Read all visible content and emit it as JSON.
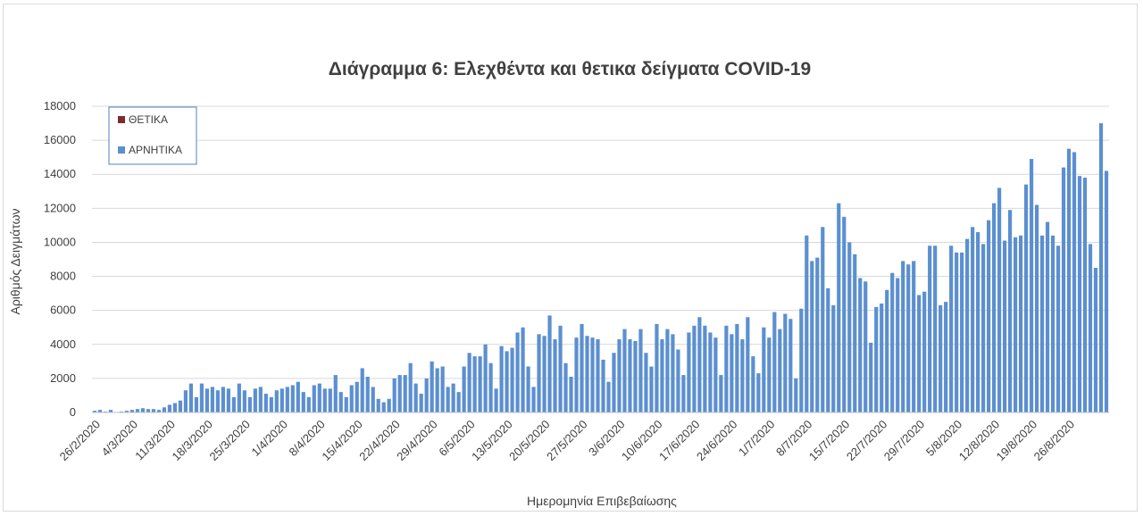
{
  "chart_data": {
    "type": "bar",
    "stacked": true,
    "title": "Διάγραμμα 6: Ελεχθέντα και θετικα δείγματα COVID-19",
    "xlabel": "Ημερομηνία Επιβεβαίωσης",
    "ylabel": "Αριθμός Δειγμάτων",
    "ylim": [
      0,
      18000
    ],
    "yticks": [
      0,
      2000,
      4000,
      6000,
      8000,
      10000,
      12000,
      14000,
      16000,
      18000
    ],
    "grid": true,
    "legend_position": "top-left",
    "x_start": "2020-02-26",
    "xtick_labels": [
      "26/2/2020",
      "4/3/2020",
      "11/3/2020",
      "18/3/2020",
      "25/3/2020",
      "1/4/2020",
      "8/4/2020",
      "15/4/2020",
      "22/4/2020",
      "29/4/2020",
      "6/5/2020",
      "13/5/2020",
      "20/5/2020",
      "27/5/2020",
      "3/6/2020",
      "10/6/2020",
      "17/6/2020",
      "24/6/2020",
      "1/7/2020",
      "8/7/2020",
      "15/7/2020",
      "22/7/2020",
      "29/7/2020",
      "5/8/2020",
      "12/8/2020",
      "19/8/2020",
      "26/8/2020"
    ],
    "series": [
      {
        "name": "ΘΕΤΙΚΑ",
        "color": "#7b2c2c",
        "values": [
          0,
          0,
          0,
          0,
          0,
          0,
          0,
          0,
          0,
          0,
          0,
          0,
          0,
          0,
          0,
          0,
          0,
          0,
          0,
          0,
          0,
          0,
          0,
          0,
          0,
          0,
          0,
          0,
          0,
          0,
          0,
          0,
          0,
          0,
          0,
          0,
          0,
          0,
          0,
          0,
          0,
          0,
          0,
          0,
          0,
          0,
          0,
          0,
          0,
          0,
          0,
          0,
          0,
          0,
          0,
          0,
          0,
          0,
          0,
          0,
          0,
          0,
          0,
          0,
          0,
          0,
          0,
          0,
          0,
          0,
          0,
          0,
          0,
          0,
          0,
          0,
          0,
          0,
          0,
          0,
          0,
          0,
          0,
          0,
          0,
          0,
          0,
          0,
          0,
          0,
          0,
          0,
          0,
          0,
          0,
          0,
          0,
          0,
          0,
          0,
          0,
          0,
          0,
          0,
          0,
          0,
          0,
          0,
          0,
          0,
          0,
          0,
          0,
          0,
          0,
          0,
          0,
          0,
          0,
          0,
          0,
          0,
          0,
          0,
          0,
          0,
          0,
          0,
          0,
          0,
          0,
          0,
          0,
          0,
          0,
          0,
          0,
          0,
          0,
          0,
          0,
          0,
          0,
          0,
          0,
          0,
          0,
          0,
          0,
          0,
          0,
          0,
          0,
          0,
          0,
          0,
          0,
          0,
          0,
          0,
          0,
          0,
          0,
          0,
          0,
          0,
          0,
          0,
          0,
          0,
          0,
          0,
          0,
          0,
          0,
          0,
          0,
          0,
          0,
          0,
          0,
          0,
          0,
          0,
          0,
          0,
          0,
          0,
          0,
          0,
          0,
          0,
          0,
          0,
          0,
          0,
          0,
          0,
          0,
          0,
          0,
          0,
          0,
          0,
          0,
          0,
          0,
          0,
          0,
          0,
          0,
          0,
          0,
          0,
          0
        ]
      },
      {
        "name": "ΑΡΝΗΤΙΚΑ",
        "color": "#5b8fd0",
        "values": [
          100,
          150,
          50,
          150,
          0,
          50,
          100,
          150,
          200,
          250,
          200,
          200,
          150,
          300,
          450,
          550,
          700,
          1300,
          1700,
          900,
          1700,
          1400,
          1500,
          1300,
          1500,
          1400,
          900,
          1700,
          1300,
          900,
          1400,
          1500,
          1100,
          900,
          1300,
          1400,
          1500,
          1600,
          1800,
          1200,
          900,
          1600,
          1700,
          1400,
          1400,
          2200,
          1200,
          900,
          1600,
          1800,
          2600,
          2100,
          1500,
          800,
          600,
          800,
          2000,
          2200,
          2200,
          2900,
          1700,
          1100,
          2000,
          3000,
          2600,
          2700,
          1500,
          1700,
          1200,
          2700,
          3500,
          3300,
          3300,
          4000,
          2900,
          1400,
          3900,
          3600,
          3800,
          4700,
          5000,
          2700,
          1500,
          4600,
          4500,
          5700,
          4300,
          5100,
          2900,
          2100,
          4400,
          5200,
          4500,
          4400,
          4300,
          3100,
          1800,
          3500,
          4300,
          4900,
          4300,
          4200,
          4900,
          3500,
          2700,
          5200,
          4300,
          4900,
          4600,
          3700,
          2200,
          4700,
          5100,
          5600,
          5100,
          4700,
          4400,
          2200,
          5100,
          4600,
          5200,
          4300,
          5600,
          3300,
          2300,
          5000,
          4400,
          5900,
          4900,
          5800,
          5500,
          2000,
          6100,
          10400,
          8900,
          9100,
          10900,
          7300,
          6300,
          12300,
          11500,
          10000,
          9300,
          7900,
          7700,
          4100,
          6200,
          6400,
          7200,
          8200,
          7900,
          8900,
          8700,
          8900,
          6900,
          7100,
          9800,
          9800,
          6300,
          6500,
          9800,
          9400,
          9400,
          10200,
          10900,
          10600,
          9900,
          11300,
          12300,
          13200,
          10100,
          11900,
          10300,
          10400,
          13400,
          14900,
          12200,
          10400,
          11200,
          10400,
          9800,
          14400,
          15500,
          15300,
          13900,
          13800,
          9900,
          8500,
          17000,
          14200
        ]
      }
    ]
  }
}
